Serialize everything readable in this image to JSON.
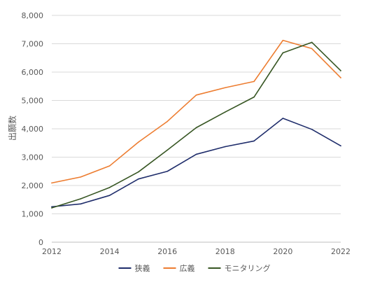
{
  "chart_data": {
    "type": "line",
    "title": "",
    "xlabel": "",
    "ylabel": "出願数",
    "x": [
      2012,
      2013,
      2014,
      2015,
      2016,
      2017,
      2018,
      2019,
      2020,
      2021,
      2022
    ],
    "xticks": [
      "2012",
      "2014",
      "2016",
      "2018",
      "2020",
      "2022"
    ],
    "yticks": [
      "0",
      "1,000",
      "2,000",
      "3,000",
      "4,000",
      "5,000",
      "6,000",
      "7,000",
      "8,000"
    ],
    "xlim": [
      2012,
      2022
    ],
    "ylim": [
      0,
      8000
    ],
    "grid": "horizontal",
    "legend_position": "bottom",
    "series": [
      {
        "name": "狭義",
        "color": "#1f2d6b",
        "values": [
          1250,
          1350,
          1650,
          2230,
          2500,
          3100,
          3370,
          3570,
          4370,
          3980,
          3400
        ]
      },
      {
        "name": "広義",
        "color": "#ed7d31",
        "values": [
          2090,
          2300,
          2690,
          3530,
          4260,
          5190,
          5450,
          5670,
          7120,
          6830,
          5800
        ]
      },
      {
        "name": "モニタリング",
        "color": "#375623",
        "values": [
          1210,
          1530,
          1930,
          2480,
          3250,
          4040,
          4590,
          5120,
          6680,
          7050,
          6050
        ]
      }
    ]
  }
}
